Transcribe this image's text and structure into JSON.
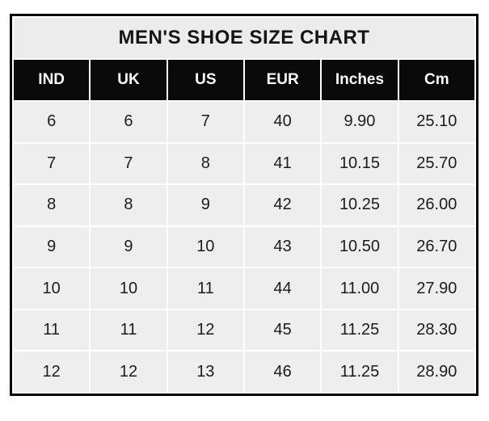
{
  "colors": {
    "outer_border": "#000000",
    "title_bg": "#ececec",
    "header_bg": "#0a0a0a",
    "header_text": "#fafafa",
    "cell_bg": "#eeeeee",
    "cell_text": "#1c1c1c",
    "grid_gap": "#ffffff"
  },
  "chart_data": {
    "type": "table",
    "title": "MEN'S SHOE SIZE CHART",
    "columns": [
      "IND",
      "UK",
      "US",
      "EUR",
      "Inches",
      "Cm"
    ],
    "rows": [
      [
        "6",
        "6",
        "7",
        "40",
        "9.90",
        "25.10"
      ],
      [
        "7",
        "7",
        "8",
        "41",
        "10.15",
        "25.70"
      ],
      [
        "8",
        "8",
        "9",
        "42",
        "10.25",
        "26.00"
      ],
      [
        "9",
        "9",
        "10",
        "43",
        "10.50",
        "26.70"
      ],
      [
        "10",
        "10",
        "11",
        "44",
        "11.00",
        "27.90"
      ],
      [
        "11",
        "11",
        "12",
        "45",
        "11.25",
        "28.30"
      ],
      [
        "12",
        "12",
        "13",
        "46",
        "11.25",
        "28.90"
      ]
    ]
  }
}
